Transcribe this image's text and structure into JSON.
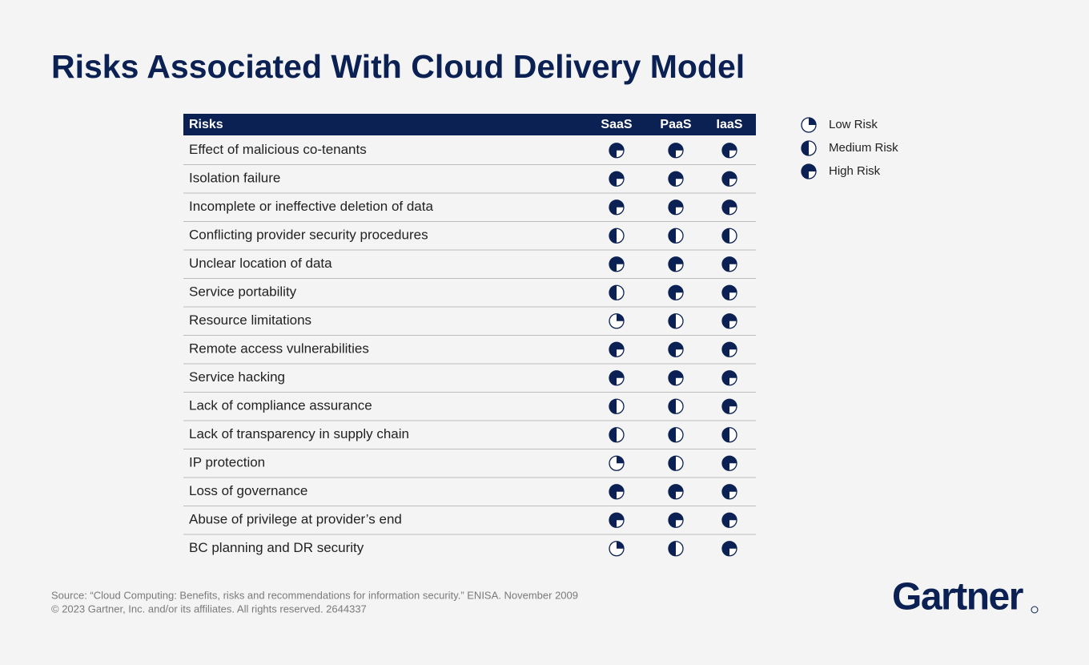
{
  "title": "Risks Associated With Cloud Delivery Model",
  "table": {
    "header": [
      "Risks",
      "SaaS",
      "PaaS",
      "IaaS"
    ],
    "rows": [
      {
        "risk": "Effect of malicious co-tenants",
        "quarters": [
          3,
          3,
          3
        ]
      },
      {
        "risk": "Isolation failure",
        "quarters": [
          3,
          3,
          3
        ]
      },
      {
        "risk": "Incomplete or ineffective deletion of data",
        "quarters": [
          3,
          3,
          3
        ]
      },
      {
        "risk": "Conflicting provider security procedures",
        "quarters": [
          2,
          2,
          2
        ]
      },
      {
        "risk": "Unclear location of data",
        "quarters": [
          3,
          3,
          3
        ]
      },
      {
        "risk": "Service portability",
        "quarters": [
          2,
          3,
          3
        ]
      },
      {
        "risk": "Resource limitations",
        "quarters": [
          1,
          2,
          3
        ]
      },
      {
        "risk": "Remote access vulnerabilities",
        "quarters": [
          3,
          3,
          3
        ]
      },
      {
        "risk": "Service hacking",
        "quarters": [
          3,
          3,
          3
        ]
      },
      {
        "risk": "Lack of compliance assurance",
        "quarters": [
          2,
          2,
          3
        ]
      },
      {
        "risk": "Lack of transparency in supply chain",
        "quarters": [
          2,
          2,
          2
        ]
      },
      {
        "risk": "IP protection",
        "quarters": [
          1,
          2,
          3
        ]
      },
      {
        "risk": "Loss of governance",
        "quarters": [
          3,
          3,
          3
        ]
      },
      {
        "risk": "Abuse of privilege at provider’s end",
        "quarters": [
          3,
          3,
          3
        ]
      },
      {
        "risk": "BC planning and DR security",
        "quarters": [
          1,
          2,
          3
        ]
      }
    ]
  },
  "legend": [
    {
      "label": "Low Risk",
      "quarters": 1
    },
    {
      "label": "Medium Risk",
      "quarters": 2
    },
    {
      "label": "High Risk",
      "quarters": 3
    }
  ],
  "footer": {
    "source": "Source: “Cloud Computing: Benefits, risks and recommendations for information security.” ENISA. November 2009",
    "copyright": "© 2023 Gartner, Inc. and/or its affiliates. All rights reserved. 2644337"
  },
  "logo": "Gartner"
}
